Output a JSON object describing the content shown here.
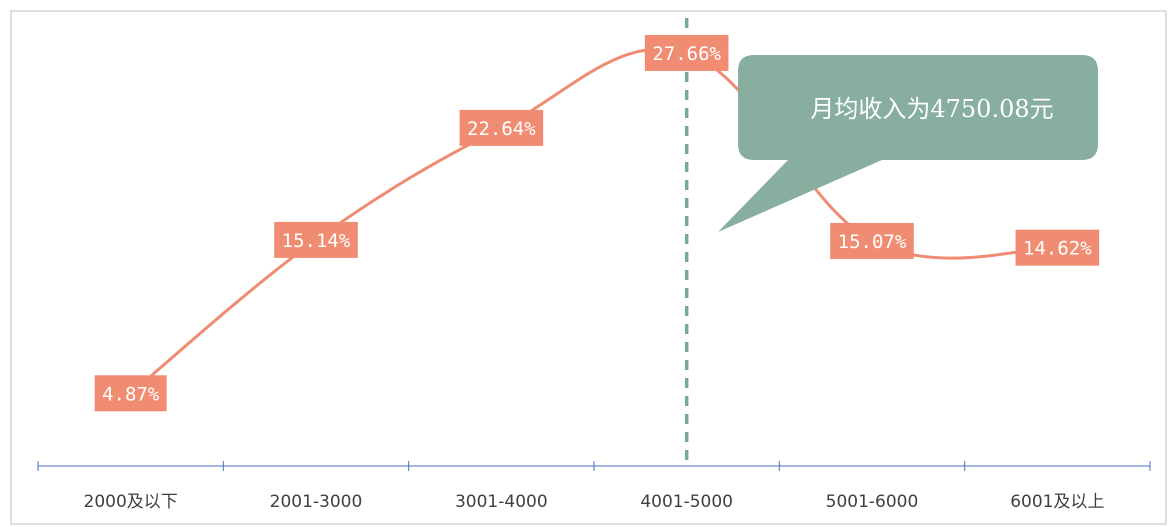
{
  "chart_data": {
    "type": "line",
    "categories": [
      "2000及以下",
      "2001-3000",
      "3001-4000",
      "4001-5000",
      "5001-6000",
      "6001及以上"
    ],
    "series": [
      {
        "values": [
          4.87,
          15.14,
          22.64,
          27.66,
          15.07,
          14.62
        ]
      }
    ],
    "data_labels": [
      "4.87%",
      "15.14%",
      "22.64%",
      "27.66%",
      "15.07%",
      "14.62%"
    ],
    "reference_line": {
      "value": 4750.08,
      "style": "dashed",
      "position": "at category 4001-5000 boundary"
    },
    "annotation": {
      "text": "月均收入为4750.08元"
    },
    "ylim": [
      0,
      30
    ],
    "grid": false,
    "legend": "none",
    "colors": {
      "line": "#F08C72",
      "label_bg": "#F08C72",
      "reference_line": "#7BA896",
      "callout_bg": "#87AE9F",
      "axis": "#4472C4",
      "frame": "#BFBFBF"
    }
  }
}
